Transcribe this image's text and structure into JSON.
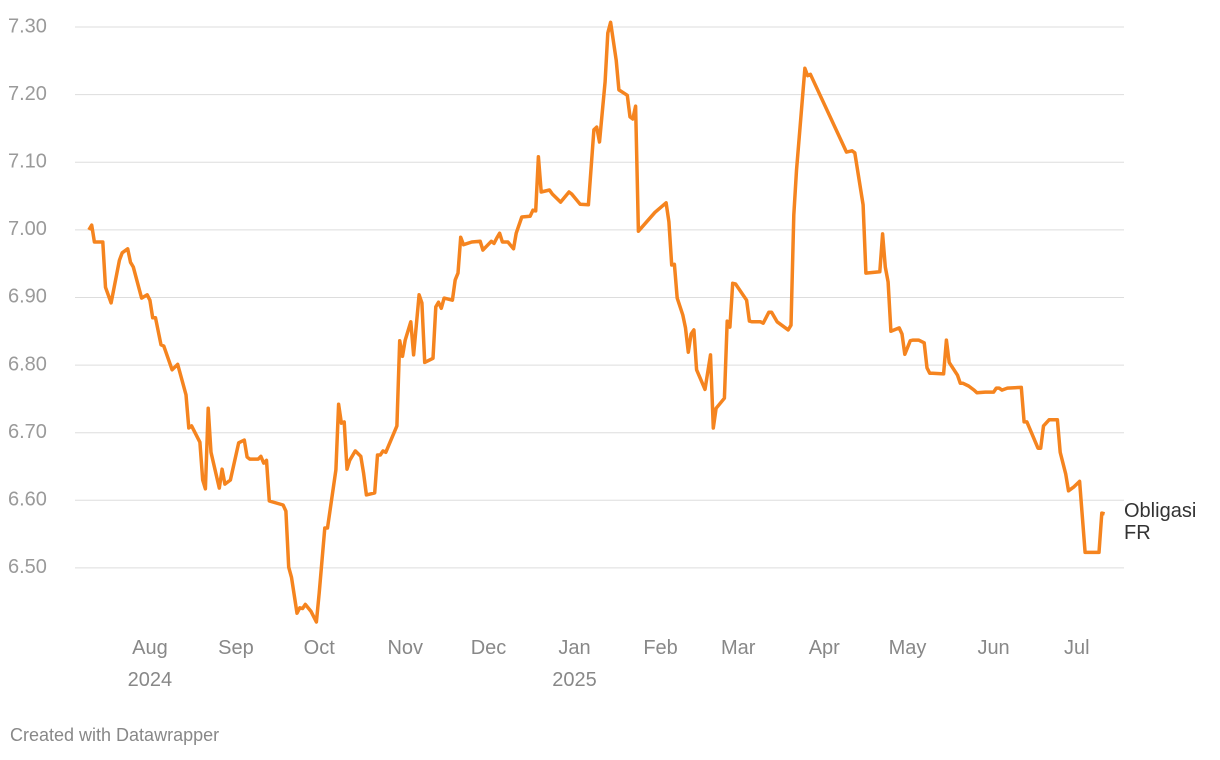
{
  "chart_data": {
    "type": "line",
    "x": [
      9,
      10,
      11,
      14,
      15,
      17,
      20,
      21,
      23,
      24,
      25,
      28,
      30,
      31,
      32,
      33,
      35,
      36,
      39,
      41,
      44,
      45,
      46,
      49,
      50,
      51,
      52,
      53,
      56,
      57,
      58,
      60,
      63,
      65,
      66,
      67,
      70,
      71,
      72,
      73,
      74,
      79,
      80,
      81,
      82,
      84,
      85,
      86,
      87,
      89,
      91,
      92,
      94,
      95,
      98,
      99,
      100,
      101,
      102,
      103,
      105,
      107,
      108,
      109,
      112,
      113,
      114,
      115,
      116,
      120,
      121,
      122,
      123,
      125,
      126,
      128,
      129,
      130,
      133,
      134,
      135,
      136,
      137,
      140,
      141,
      142,
      143,
      144,
      147,
      150,
      151,
      154,
      155,
      156,
      157,
      158,
      160,
      162,
      163,
      165,
      168,
      169,
      170,
      171,
      172,
      175,
      176,
      179,
      182,
      183,
      186,
      189,
      191,
      192,
      193,
      195,
      196,
      197,
      199,
      200,
      203,
      204,
      205,
      206,
      207,
      213,
      217,
      218,
      219,
      220,
      221,
      223,
      224,
      225,
      226,
      227,
      228,
      231,
      233,
      234,
      235,
      238,
      239,
      240,
      241,
      242,
      246,
      247,
      248,
      251,
      252,
      254,
      255,
      257,
      261,
      262,
      263,
      264,
      267,
      268,
      269,
      282,
      284,
      285,
      288,
      289,
      294,
      295,
      296,
      297,
      298,
      301,
      302,
      303,
      305,
      306,
      308,
      310,
      311,
      312,
      313,
      317,
      318,
      319,
      322,
      323,
      324,
      326,
      328,
      329,
      332,
      335,
      336,
      337,
      338,
      340,
      345,
      346,
      347,
      351,
      352,
      353,
      355,
      358,
      359,
      361,
      362,
      364,
      366,
      368,
      369,
      373,
      374,
      375
    ],
    "series": [
      {
        "name": "Obligasi FR",
        "color": "#f5841f",
        "values": [
          7.0,
          7.007,
          6.982,
          6.982,
          6.915,
          6.892,
          6.955,
          6.966,
          6.972,
          6.952,
          6.945,
          6.899,
          6.904,
          6.896,
          6.87,
          6.87,
          6.83,
          6.828,
          6.793,
          6.801,
          6.756,
          6.707,
          6.71,
          6.686,
          6.63,
          6.617,
          6.736,
          6.671,
          6.618,
          6.646,
          6.624,
          6.63,
          6.685,
          6.689,
          6.664,
          6.661,
          6.661,
          6.665,
          6.655,
          6.659,
          6.599,
          6.593,
          6.584,
          6.501,
          6.486,
          6.433,
          6.441,
          6.44,
          6.446,
          6.436,
          6.42,
          6.463,
          6.559,
          6.559,
          6.645,
          6.742,
          6.714,
          6.716,
          6.646,
          6.659,
          6.673,
          6.665,
          6.64,
          6.608,
          6.611,
          6.667,
          6.667,
          6.673,
          6.671,
          6.71,
          6.836,
          6.813,
          6.837,
          6.864,
          6.815,
          6.904,
          6.892,
          6.804,
          6.81,
          6.886,
          6.893,
          6.884,
          6.899,
          6.896,
          6.926,
          6.936,
          6.989,
          6.978,
          6.982,
          6.983,
          6.97,
          6.983,
          6.98,
          6.988,
          6.995,
          6.982,
          6.982,
          6.972,
          6.995,
          7.019,
          7.02,
          7.029,
          7.028,
          7.108,
          7.056,
          7.059,
          7.053,
          7.041,
          7.056,
          7.053,
          7.038,
          7.037,
          7.148,
          7.152,
          7.13,
          7.219,
          7.291,
          7.307,
          7.251,
          7.207,
          7.199,
          7.167,
          7.164,
          7.183,
          6.998,
          7.026,
          7.04,
          7.012,
          6.948,
          6.949,
          6.899,
          6.874,
          6.855,
          6.819,
          6.846,
          6.852,
          6.793,
          6.764,
          6.815,
          6.707,
          6.736,
          6.751,
          6.865,
          6.856,
          6.921,
          6.92,
          6.896,
          6.865,
          6.864,
          6.864,
          6.862,
          6.878,
          6.878,
          6.864,
          6.852,
          6.859,
          7.022,
          7.088,
          7.239,
          7.228,
          7.23,
          7.115,
          7.117,
          7.114,
          7.037,
          6.936,
          6.938,
          6.994,
          6.945,
          6.923,
          6.85,
          6.855,
          6.846,
          6.816,
          6.836,
          6.837,
          6.837,
          6.833,
          6.796,
          6.788,
          6.788,
          6.787,
          6.837,
          6.804,
          6.785,
          6.773,
          6.773,
          6.769,
          6.763,
          6.759,
          6.76,
          6.76,
          6.766,
          6.766,
          6.763,
          6.766,
          6.767,
          6.716,
          6.716,
          6.677,
          6.677,
          6.71,
          6.719,
          6.719,
          6.671,
          6.639,
          6.614,
          6.62,
          6.628,
          6.523,
          6.523,
          6.523,
          6.581,
          6.58
        ]
      }
    ],
    "xlim": [
      4,
      382
    ],
    "xticks": [
      {
        "value": 31,
        "label": "Aug 2024"
      },
      {
        "value": 62,
        "label": "Sep"
      },
      {
        "value": 92,
        "label": "Oct"
      },
      {
        "value": 123,
        "label": "Nov"
      },
      {
        "value": 153,
        "label": "Dec"
      },
      {
        "value": 184,
        "label": "Jan 2025"
      },
      {
        "value": 215,
        "label": "Feb"
      },
      {
        "value": 243,
        "label": "Mar"
      },
      {
        "value": 274,
        "label": "Apr"
      },
      {
        "value": 304,
        "label": "May"
      },
      {
        "value": 335,
        "label": "Jun"
      },
      {
        "value": 365,
        "label": "Jul"
      }
    ],
    "ylim": [
      6.42,
      7.32
    ],
    "yticks": [
      {
        "value": 6.5,
        "label": "6.50"
      },
      {
        "value": 6.6,
        "label": "6.60"
      },
      {
        "value": 6.7,
        "label": "6.70"
      },
      {
        "value": 6.8,
        "label": "6.80"
      },
      {
        "value": 6.9,
        "label": "6.90"
      },
      {
        "value": 7.0,
        "label": "7.00"
      },
      {
        "value": 7.1,
        "label": "7.10"
      },
      {
        "value": 7.2,
        "label": "7.20"
      },
      {
        "value": 7.3,
        "label": "7.30"
      }
    ],
    "grid": true,
    "footer": "Created with Datawrapper"
  }
}
